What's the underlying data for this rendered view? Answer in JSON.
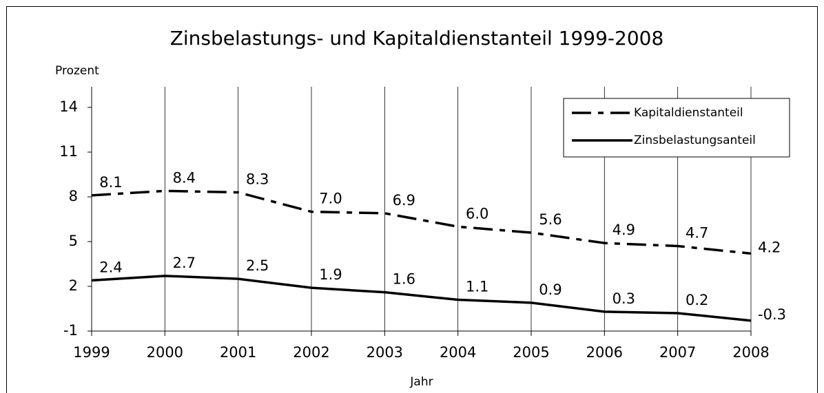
{
  "chart_data": {
    "type": "line",
    "title": "Zinsbelastungs- und Kapitaldienstanteil 1999-2008",
    "y_label": "Prozent",
    "x_label": "Jahr",
    "categories": [
      "1999",
      "2000",
      "2001",
      "2002",
      "2003",
      "2004",
      "2005",
      "2006",
      "2007",
      "2008"
    ],
    "series": [
      {
        "name": "Kapitaldienstanteil",
        "color": "#000000",
        "dashed": true,
        "values": [
          8.1,
          8.4,
          8.3,
          7.0,
          6.9,
          6.0,
          5.6,
          4.9,
          4.7,
          4.2
        ],
        "value_labels": [
          "8.1",
          "8.4",
          "8.3",
          "7.0",
          "6.9",
          "6.0",
          "5.6",
          "4.9",
          "4.7",
          "4.2"
        ]
      },
      {
        "name": "Zinsbelastungsanteil",
        "color": "#000000",
        "dashed": false,
        "values": [
          2.4,
          2.7,
          2.5,
          1.9,
          1.6,
          1.1,
          0.9,
          0.3,
          0.2,
          -0.3
        ],
        "value_labels": [
          "2.4",
          "2.7",
          "2.5",
          "1.9",
          "1.6",
          "1.1",
          "0.9",
          "0.3",
          "0.2",
          "-0.3"
        ]
      }
    ],
    "ylim": [
      -1,
      14
    ],
    "yticks": [
      -1,
      2,
      5,
      8,
      11,
      14
    ],
    "grid": true,
    "legend": "upper right"
  }
}
